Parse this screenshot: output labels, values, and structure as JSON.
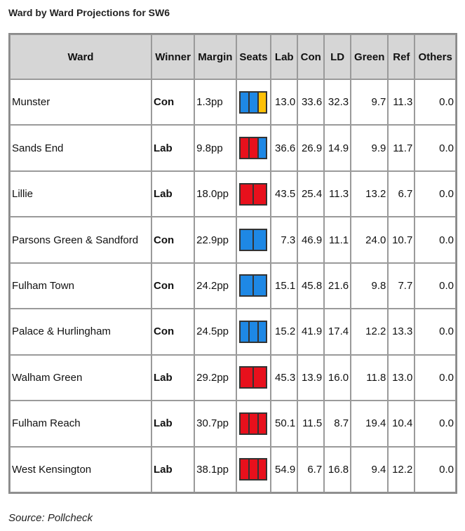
{
  "title": "Ward by Ward Projections for SW6",
  "colors": {
    "Con": "#1e88e5",
    "Lab": "#e8101c",
    "LD": "#ffc107"
  },
  "columns": [
    "Ward",
    "Winner",
    "Margin",
    "Seats",
    "Lab",
    "Con",
    "LD",
    "Green",
    "Ref",
    "Others"
  ],
  "rows": [
    {
      "ward": "Munster",
      "winner": "Con",
      "margin": "1.3pp",
      "seats": [
        "Con",
        "Con",
        "LD"
      ],
      "lab": "13.0",
      "con": "33.6",
      "ld": "32.3",
      "green": "9.7",
      "ref": "11.3",
      "others": "0.0"
    },
    {
      "ward": "Sands End",
      "winner": "Lab",
      "margin": "9.8pp",
      "seats": [
        "Lab",
        "Lab",
        "Con"
      ],
      "lab": "36.6",
      "con": "26.9",
      "ld": "14.9",
      "green": "9.9",
      "ref": "11.7",
      "others": "0.0"
    },
    {
      "ward": "Lillie",
      "winner": "Lab",
      "margin": "18.0pp",
      "seats": [
        "Lab",
        "Lab"
      ],
      "lab": "43.5",
      "con": "25.4",
      "ld": "11.3",
      "green": "13.2",
      "ref": "6.7",
      "others": "0.0"
    },
    {
      "ward": "Parsons Green & Sandford",
      "winner": "Con",
      "margin": "22.9pp",
      "seats": [
        "Con",
        "Con"
      ],
      "lab": "7.3",
      "con": "46.9",
      "ld": "11.1",
      "green": "24.0",
      "ref": "10.7",
      "others": "0.0"
    },
    {
      "ward": "Fulham Town",
      "winner": "Con",
      "margin": "24.2pp",
      "seats": [
        "Con",
        "Con"
      ],
      "lab": "15.1",
      "con": "45.8",
      "ld": "21.6",
      "green": "9.8",
      "ref": "7.7",
      "others": "0.0"
    },
    {
      "ward": "Palace & Hurlingham",
      "winner": "Con",
      "margin": "24.5pp",
      "seats": [
        "Con",
        "Con",
        "Con"
      ],
      "lab": "15.2",
      "con": "41.9",
      "ld": "17.4",
      "green": "12.2",
      "ref": "13.3",
      "others": "0.0"
    },
    {
      "ward": "Walham Green",
      "winner": "Lab",
      "margin": "29.2pp",
      "seats": [
        "Lab",
        "Lab"
      ],
      "lab": "45.3",
      "con": "13.9",
      "ld": "16.0",
      "green": "11.8",
      "ref": "13.0",
      "others": "0.0"
    },
    {
      "ward": "Fulham Reach",
      "winner": "Lab",
      "margin": "30.7pp",
      "seats": [
        "Lab",
        "Lab",
        "Lab"
      ],
      "lab": "50.1",
      "con": "11.5",
      "ld": "8.7",
      "green": "19.4",
      "ref": "10.4",
      "others": "0.0"
    },
    {
      "ward": "West Kensington",
      "winner": "Lab",
      "margin": "38.1pp",
      "seats": [
        "Lab",
        "Lab",
        "Lab"
      ],
      "lab": "54.9",
      "con": "6.7",
      "ld": "16.8",
      "green": "9.4",
      "ref": "12.2",
      "others": "0.0"
    }
  ],
  "source": "Source: Pollcheck"
}
